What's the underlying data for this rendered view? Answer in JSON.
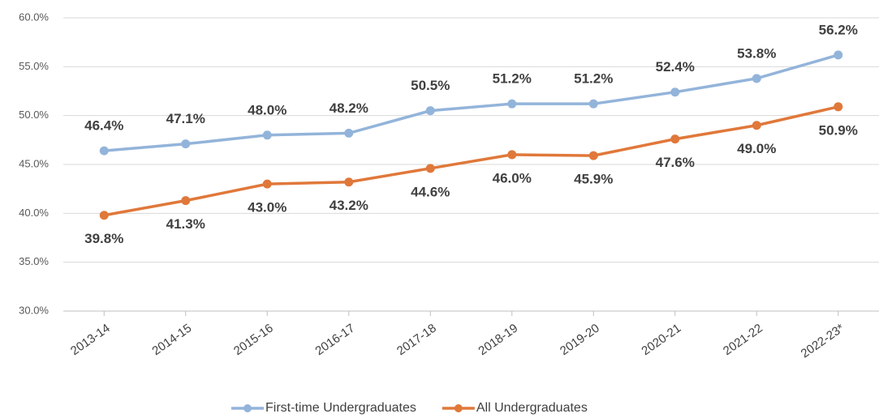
{
  "chart_data": {
    "type": "line",
    "categories": [
      "2013-14",
      "2014-15",
      "2015-16",
      "2016-17",
      "2017-18",
      "2018-19",
      "2019-20",
      "2020-21",
      "2021-22",
      "2022-23*"
    ],
    "series": [
      {
        "name": "First-time Undergraduates",
        "color": "#93b4da",
        "values": [
          46.4,
          47.1,
          48.0,
          48.2,
          50.5,
          51.2,
          51.2,
          52.4,
          53.8,
          56.2
        ],
        "value_labels": [
          "46.4%",
          "47.1%",
          "48.0%",
          "48.2%",
          "50.5%",
          "51.2%",
          "51.2%",
          "52.4%",
          "53.8%",
          "56.2%"
        ]
      },
      {
        "name": "All Undergraduates",
        "color": "#e0783a",
        "values": [
          39.8,
          41.3,
          43.0,
          43.2,
          44.6,
          46.0,
          45.9,
          47.6,
          49.0,
          50.9
        ],
        "value_labels": [
          "39.8%",
          "41.3%",
          "43.0%",
          "43.2%",
          "44.6%",
          "46.0%",
          "45.9%",
          "47.6%",
          "49.0%",
          "50.9%"
        ]
      }
    ],
    "ylim": [
      30,
      60
    ],
    "yticks": [
      {
        "value": 30,
        "label": "30.0%"
      },
      {
        "value": 35,
        "label": "35.0%"
      },
      {
        "value": 40,
        "label": "40.0%"
      },
      {
        "value": 45,
        "label": "45.0%"
      },
      {
        "value": 50,
        "label": "50.0%"
      },
      {
        "value": 55,
        "label": "55.0%"
      },
      {
        "value": 60,
        "label": "60.0%"
      }
    ],
    "grid": true,
    "legend": "bottom"
  }
}
